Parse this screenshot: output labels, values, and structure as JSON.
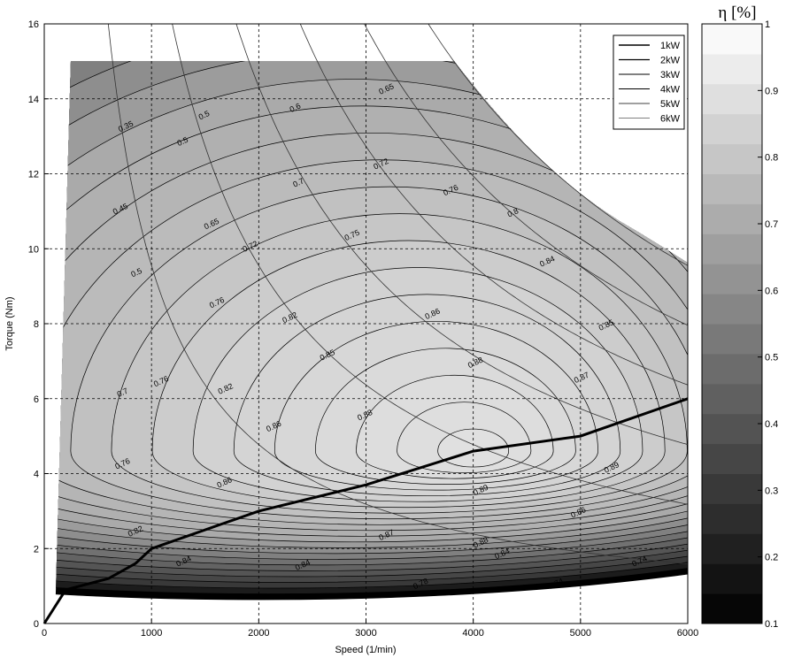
{
  "chart_data": {
    "type": "contour",
    "xlabel": "Speed (1/min)",
    "ylabel": "Torque (Nm)",
    "xlim": [
      0,
      6000
    ],
    "ylim": [
      0,
      16
    ],
    "xticks": [
      0,
      1000,
      2000,
      3000,
      4000,
      5000,
      6000
    ],
    "yticks": [
      0,
      2,
      4,
      6,
      8,
      10,
      12,
      14,
      16
    ],
    "grid": "dashed",
    "colorbar": {
      "title": "η [%]",
      "range": [
        0.1,
        1
      ],
      "ticks": [
        0.1,
        0.2,
        0.3,
        0.4,
        0.5,
        0.6,
        0.7,
        0.8,
        0.9,
        1
      ],
      "colormap": "gray"
    },
    "colors": {
      "low": "#000000",
      "high": "#ffffff",
      "grid": "#000000"
    },
    "legend": {
      "position": "top-right",
      "entries": [
        "1kW",
        "2kW",
        "3kW",
        "4kW",
        "5kW",
        "6kW"
      ]
    },
    "power_lines_kW": [
      1,
      2,
      3,
      4,
      5,
      6
    ],
    "max_torque_limit": {
      "torque_nm": 15,
      "speed_start": 250,
      "speed_end": 3800
    },
    "efficiency_peak": {
      "speed": 4000,
      "torque": 4.6,
      "value": 0.89
    },
    "operating_line": {
      "x": [
        0,
        200,
        600,
        850,
        1000,
        2000,
        3000,
        4000,
        5000,
        6000
      ],
      "y": [
        0,
        0.9,
        1.2,
        1.6,
        2.0,
        3.0,
        3.7,
        4.6,
        5.0,
        6.0
      ]
    },
    "contour_labels": [
      {
        "text": "0.35",
        "x": 770,
        "y": 13.2
      },
      {
        "text": "0.5",
        "x": 1300,
        "y": 12.8
      },
      {
        "text": "0.5",
        "x": 1500,
        "y": 13.5
      },
      {
        "text": "0.6",
        "x": 2350,
        "y": 13.7
      },
      {
        "text": "0.65",
        "x": 3200,
        "y": 14.2
      },
      {
        "text": "0.45",
        "x": 720,
        "y": 11.0
      },
      {
        "text": "0.65",
        "x": 1570,
        "y": 10.6
      },
      {
        "text": "0.7",
        "x": 2380,
        "y": 11.7
      },
      {
        "text": "0.72",
        "x": 3150,
        "y": 12.2
      },
      {
        "text": "0.76",
        "x": 3800,
        "y": 11.5
      },
      {
        "text": "0.8",
        "x": 4380,
        "y": 10.9
      },
      {
        "text": "0.72",
        "x": 1930,
        "y": 10.0
      },
      {
        "text": "0.75",
        "x": 2880,
        "y": 10.3
      },
      {
        "text": "0.5",
        "x": 870,
        "y": 9.3
      },
      {
        "text": "0.84",
        "x": 4700,
        "y": 9.6
      },
      {
        "text": "0.76",
        "x": 1620,
        "y": 8.5
      },
      {
        "text": "0.82",
        "x": 2300,
        "y": 8.1
      },
      {
        "text": "0.86",
        "x": 3630,
        "y": 8.2
      },
      {
        "text": "0.85",
        "x": 5250,
        "y": 7.9
      },
      {
        "text": "0.85",
        "x": 2650,
        "y": 7.1
      },
      {
        "text": "0.88",
        "x": 4030,
        "y": 6.9
      },
      {
        "text": "0.7",
        "x": 740,
        "y": 6.1
      },
      {
        "text": "0.76",
        "x": 1100,
        "y": 6.4
      },
      {
        "text": "0.82",
        "x": 1700,
        "y": 6.2
      },
      {
        "text": "0.87",
        "x": 5020,
        "y": 6.5
      },
      {
        "text": "0.86",
        "x": 2150,
        "y": 5.2
      },
      {
        "text": "0.88",
        "x": 3000,
        "y": 5.5
      },
      {
        "text": "0.76",
        "x": 740,
        "y": 4.2
      },
      {
        "text": "0.86",
        "x": 1690,
        "y": 3.7
      },
      {
        "text": "0.89",
        "x": 4080,
        "y": 3.5
      },
      {
        "text": "0.89",
        "x": 5300,
        "y": 4.1
      },
      {
        "text": "0.86",
        "x": 4990,
        "y": 2.9
      },
      {
        "text": "0.82",
        "x": 860,
        "y": 2.4
      },
      {
        "text": "0.87",
        "x": 3200,
        "y": 2.3
      },
      {
        "text": "0.88",
        "x": 4080,
        "y": 2.1
      },
      {
        "text": "0.84",
        "x": 4280,
        "y": 1.8
      },
      {
        "text": "0.84",
        "x": 1310,
        "y": 1.6
      },
      {
        "text": "0.84",
        "x": 2420,
        "y": 1.5
      },
      {
        "text": "0.74",
        "x": 5560,
        "y": 1.6
      },
      {
        "text": "0.78",
        "x": 3520,
        "y": 1.0
      },
      {
        "text": "0.74",
        "x": 4780,
        "y": 1.0
      }
    ]
  }
}
